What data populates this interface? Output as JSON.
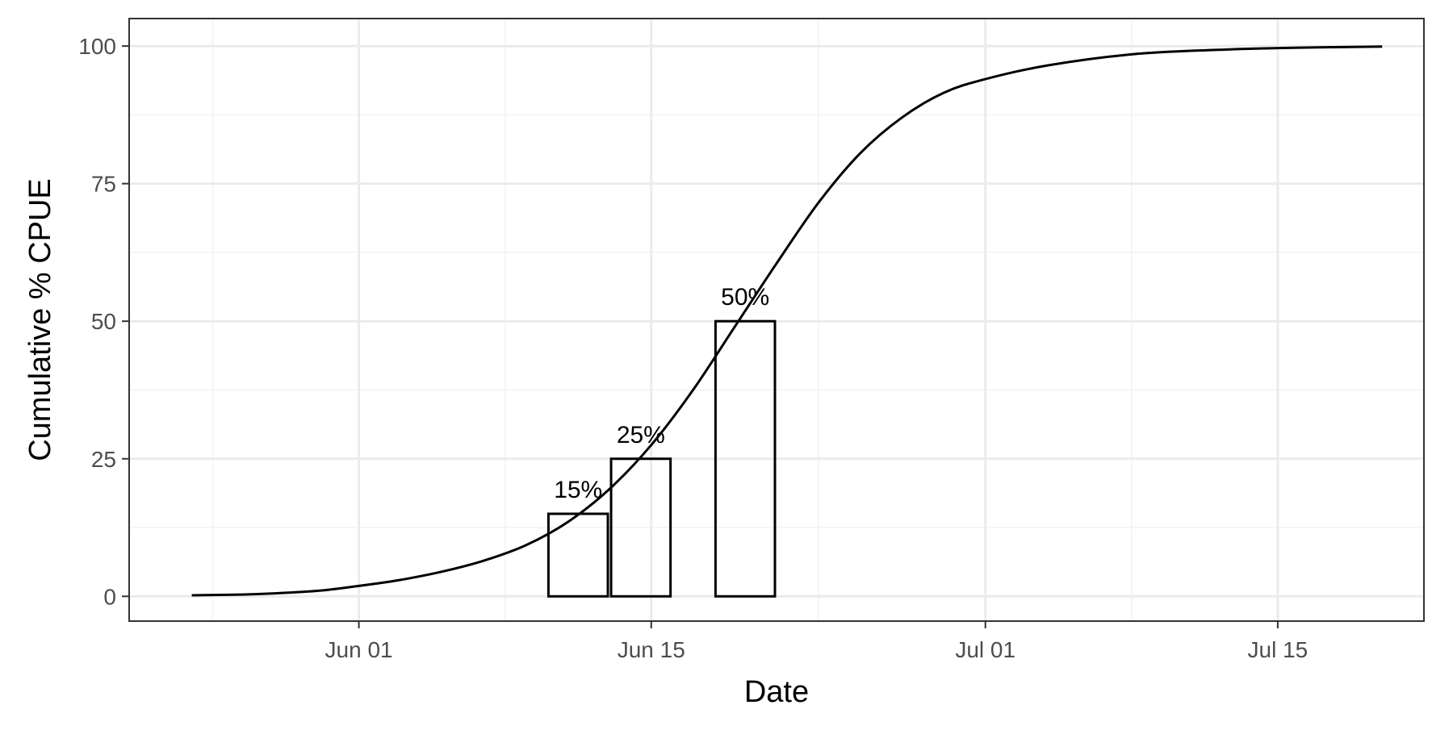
{
  "chart_data": {
    "type": "line",
    "xlabel": "Date",
    "ylabel": "Cumulative % CPUE",
    "x_axis": {
      "type": "date",
      "range": [
        "2022-05-21",
        "2022-07-22"
      ],
      "ticks": [
        {
          "date": "2022-06-01",
          "label": "Jun 01"
        },
        {
          "date": "2022-06-15",
          "label": "Jun 15"
        },
        {
          "date": "2022-07-01",
          "label": "Jul 01"
        },
        {
          "date": "2022-07-15",
          "label": "Jul 15"
        }
      ],
      "minor_ticks": [
        "2022-05-25",
        "2022-06-08",
        "2022-06-23",
        "2022-07-08",
        "2022-07-22"
      ]
    },
    "y_axis": {
      "range": [
        -4.5,
        105
      ],
      "ticks": [
        0,
        25,
        50,
        75,
        100
      ],
      "minor_ticks": [
        12.5,
        37.5,
        62.5,
        87.5
      ]
    },
    "grid": true,
    "series": [
      {
        "type": "line",
        "color": "#000000",
        "points": [
          {
            "x": "2022-05-24",
            "y": 0.2
          },
          {
            "x": "2022-05-27",
            "y": 0.4
          },
          {
            "x": "2022-05-30",
            "y": 1.0
          },
          {
            "x": "2022-06-01",
            "y": 1.9
          },
          {
            "x": "2022-06-03",
            "y": 3.0
          },
          {
            "x": "2022-06-05",
            "y": 4.5
          },
          {
            "x": "2022-06-07",
            "y": 6.5
          },
          {
            "x": "2022-06-09",
            "y": 9.3
          },
          {
            "x": "2022-06-11",
            "y": 13.5
          },
          {
            "x": "2022-06-13",
            "y": 19.5
          },
          {
            "x": "2022-06-15",
            "y": 27.5
          },
          {
            "x": "2022-06-17",
            "y": 37.5
          },
          {
            "x": "2022-06-19",
            "y": 49.0
          },
          {
            "x": "2022-06-21",
            "y": 60.5
          },
          {
            "x": "2022-06-23",
            "y": 71.5
          },
          {
            "x": "2022-06-25",
            "y": 80.5
          },
          {
            "x": "2022-06-27",
            "y": 87.0
          },
          {
            "x": "2022-06-29",
            "y": 91.5
          },
          {
            "x": "2022-07-01",
            "y": 94.0
          },
          {
            "x": "2022-07-04",
            "y": 96.5
          },
          {
            "x": "2022-07-08",
            "y": 98.5
          },
          {
            "x": "2022-07-12",
            "y": 99.3
          },
          {
            "x": "2022-07-16",
            "y": 99.7
          },
          {
            "x": "2022-07-20",
            "y": 99.9
          }
        ]
      }
    ],
    "bars": [
      {
        "x_start": "2022-06-10",
        "x_end": "2022-06-13",
        "value": 15,
        "label": "15%"
      },
      {
        "x_start": "2022-06-13",
        "x_end": "2022-06-16",
        "value": 25,
        "label": "25%"
      },
      {
        "x_start": "2022-06-18",
        "x_end": "2022-06-21",
        "value": 50,
        "label": "50%"
      }
    ],
    "colors": {
      "panel_border": "#333333",
      "major_grid": "#ebebeb",
      "minor_grid": "#f2f2f2",
      "line": "#000000",
      "bar_outline": "#000000",
      "tick_text": "#4d4d4d"
    }
  }
}
